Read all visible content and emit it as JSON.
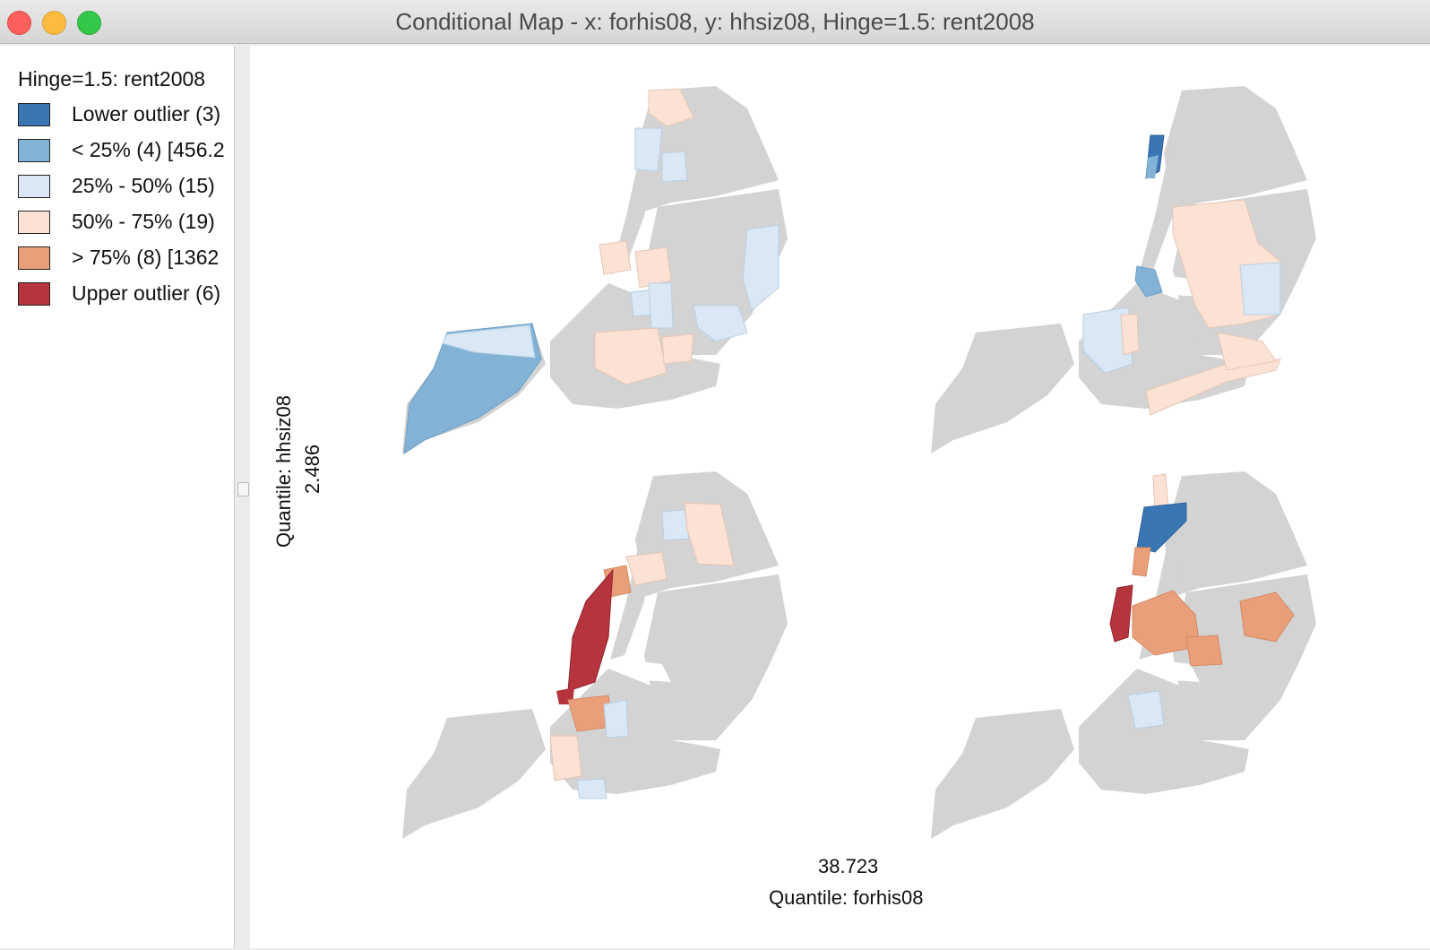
{
  "window": {
    "title": "Conditional Map - x: forhis08, y: hhsiz08, Hinge=1.5: rent2008"
  },
  "legend": {
    "title": "Hinge=1.5: rent2008",
    "items": [
      {
        "label": "Lower outlier (3)",
        "color": "#3a75b4"
      },
      {
        "label": "< 25% (4)  [456.2",
        "color": "#82b3d7"
      },
      {
        "label": "25% - 50% (15)",
        "color": "#d9e8f4"
      },
      {
        "label": "50% - 75% (19)",
        "color": "#fbe2d4"
      },
      {
        "label": "> 75% (8)  [1362",
        "color": "#e9a07a"
      },
      {
        "label": "Upper outlier (6)",
        "color": "#b5343d"
      }
    ]
  },
  "axes": {
    "y_label": "Quantile: hhsiz08",
    "y_break": "2.486",
    "x_label": "Quantile: forhis08",
    "x_break": "38.723"
  },
  "colors": {
    "background_region": "#d3d3d3",
    "water": "#ffffff"
  }
}
